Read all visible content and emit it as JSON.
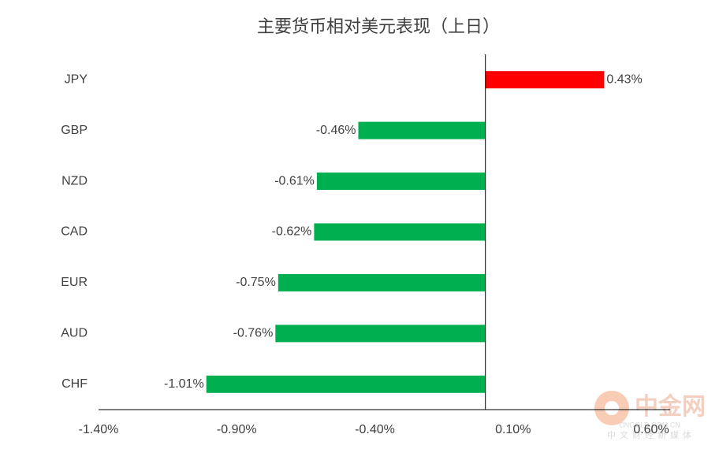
{
  "chart_data": {
    "type": "barh",
    "title": "主要货币相对美元表现（上日）",
    "categories": [
      "JPY",
      "GBP",
      "NZD",
      "CAD",
      "EUR",
      "AUD",
      "CHF"
    ],
    "values": [
      0.43,
      -0.46,
      -0.61,
      -0.62,
      -0.75,
      -0.76,
      -1.01
    ],
    "value_labels": [
      "0.43%",
      "-0.46%",
      "-0.61%",
      "-0.62%",
      "-0.75%",
      "-0.76%",
      "-1.01%"
    ],
    "positive_color": "#ff0000",
    "negative_color": "#00b050",
    "xlim": [
      -1.4,
      0.6
    ],
    "xticks": [
      {
        "value": -1.4,
        "label": "-1.40%"
      },
      {
        "value": -0.9,
        "label": "-0.90%"
      },
      {
        "value": -0.4,
        "label": "-0.40%"
      },
      {
        "value": 0.1,
        "label": "0.10%"
      },
      {
        "value": 0.6,
        "label": "0.60%"
      }
    ],
    "grid": false
  },
  "watermark": {
    "name": "中金网",
    "site": "CNGOLD.COM.CN",
    "slogan": "中文财经新媒体"
  }
}
